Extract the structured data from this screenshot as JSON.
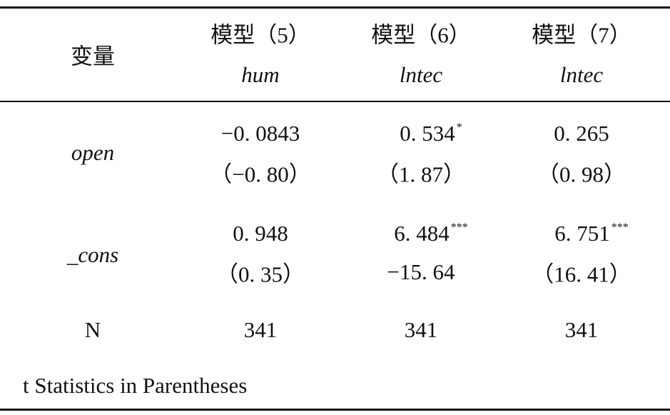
{
  "header": {
    "variable": "变量",
    "models": [
      {
        "name": "模型（5）",
        "dependent": "hum"
      },
      {
        "name": "模型（6）",
        "dependent": "lntec"
      },
      {
        "name": "模型（7）",
        "dependent": "lntec"
      }
    ]
  },
  "rows": [
    {
      "label": "open",
      "cells": [
        {
          "coef": "−0. 0843",
          "stat": "（−0. 80）"
        },
        {
          "coef": "0. 534",
          "stars": "*",
          "stat": "（1. 87）"
        },
        {
          "coef": "0. 265",
          "stat": "（0. 98）"
        }
      ]
    },
    {
      "label": "_cons",
      "cells": [
        {
          "coef": "0. 948",
          "stat": "（0. 35）"
        },
        {
          "coef": "6. 484",
          "stars": "***",
          "stat": "−15. 64"
        },
        {
          "coef": "6. 751",
          "stars": "***",
          "stat": "（16. 41）"
        }
      ]
    }
  ],
  "n_row": {
    "label": "N",
    "values": [
      "341",
      "341",
      "341"
    ]
  },
  "footnote": "t Statistics in Parentheses"
}
